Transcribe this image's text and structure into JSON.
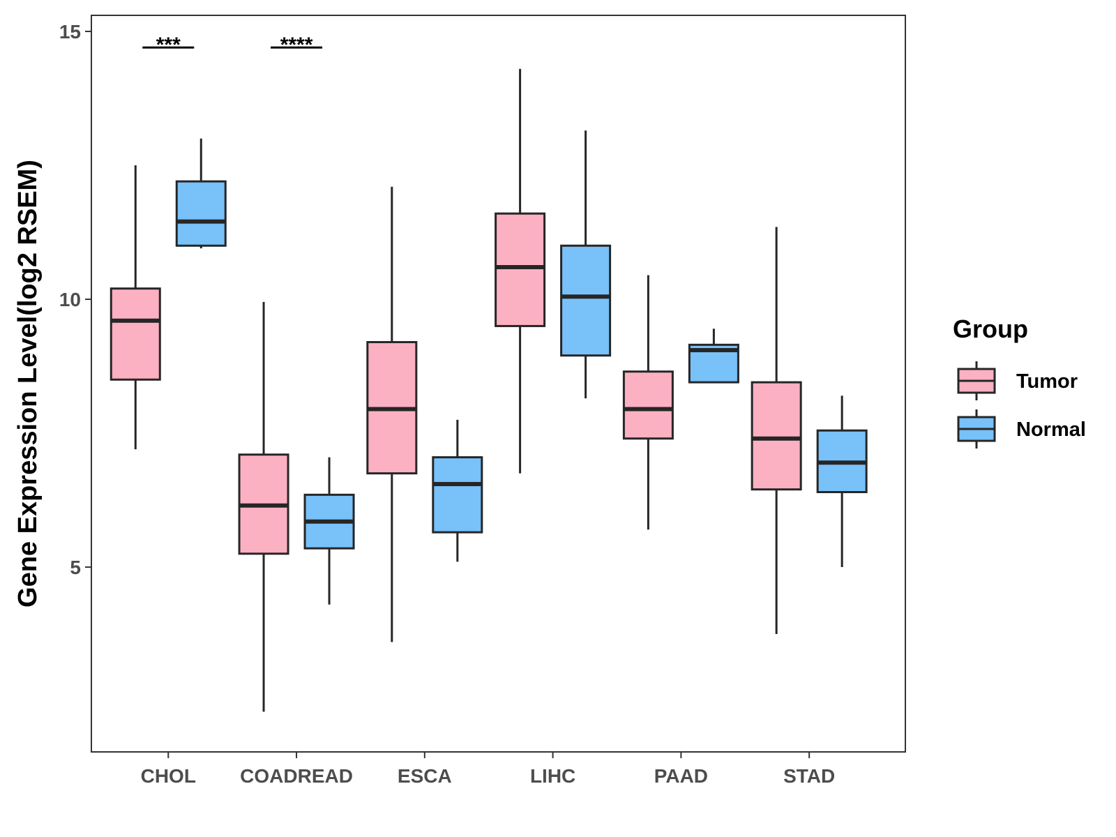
{
  "chart_data": {
    "type": "box",
    "title": "",
    "xlabel": "",
    "ylabel": "Gene Expression Level(log2 RSEM)",
    "ylim": [
      1.55,
      15.3
    ],
    "yticks": [
      5,
      10,
      15
    ],
    "categories": [
      "CHOL",
      "COADREAD",
      "ESCA",
      "LIHC",
      "PAAD",
      "STAD"
    ],
    "legend": {
      "title": "Group",
      "position": "right",
      "entries": [
        {
          "name": "Tumor",
          "color": "#fbb1c2"
        },
        {
          "name": "Normal",
          "color": "#78c1f9"
        }
      ]
    },
    "series": [
      {
        "name": "Tumor",
        "color": "#fbb1c2",
        "boxes": [
          {
            "category": "CHOL",
            "min": 7.2,
            "q1": 8.5,
            "median": 9.6,
            "q3": 10.2,
            "max": 12.5
          },
          {
            "category": "COADREAD",
            "min": 2.3,
            "q1": 5.25,
            "median": 6.15,
            "q3": 7.1,
            "max": 9.95
          },
          {
            "category": "ESCA",
            "min": 3.6,
            "q1": 6.75,
            "median": 7.95,
            "q3": 9.2,
            "max": 12.1
          },
          {
            "category": "LIHC",
            "min": 6.75,
            "q1": 9.5,
            "median": 10.6,
            "q3": 11.6,
            "max": 14.3
          },
          {
            "category": "PAAD",
            "min": 5.7,
            "q1": 7.4,
            "median": 7.95,
            "q3": 8.65,
            "max": 10.45
          },
          {
            "category": "STAD",
            "min": 3.75,
            "q1": 6.45,
            "median": 7.4,
            "q3": 8.45,
            "max": 11.35
          }
        ]
      },
      {
        "name": "Normal",
        "color": "#78c1f9",
        "boxes": [
          {
            "category": "CHOL",
            "min": 10.95,
            "q1": 11.0,
            "median": 11.45,
            "q3": 12.2,
            "max": 13.0
          },
          {
            "category": "COADREAD",
            "min": 4.3,
            "q1": 5.35,
            "median": 5.85,
            "q3": 6.35,
            "max": 7.05
          },
          {
            "category": "ESCA",
            "min": 5.1,
            "q1": 5.65,
            "median": 6.55,
            "q3": 7.05,
            "max": 7.75
          },
          {
            "category": "LIHC",
            "min": 8.15,
            "q1": 8.95,
            "median": 10.05,
            "q3": 11.0,
            "max": 13.15
          },
          {
            "category": "PAAD",
            "min": 8.45,
            "q1": 8.45,
            "median": 9.05,
            "q3": 9.15,
            "max": 9.45
          },
          {
            "category": "STAD",
            "min": 5.0,
            "q1": 6.4,
            "median": 6.95,
            "q3": 7.55,
            "max": 8.2
          }
        ]
      }
    ],
    "annotations": [
      {
        "category": "CHOL",
        "label": "***",
        "y": 14.7
      },
      {
        "category": "COADREAD",
        "label": "****",
        "y": 14.7
      }
    ]
  }
}
